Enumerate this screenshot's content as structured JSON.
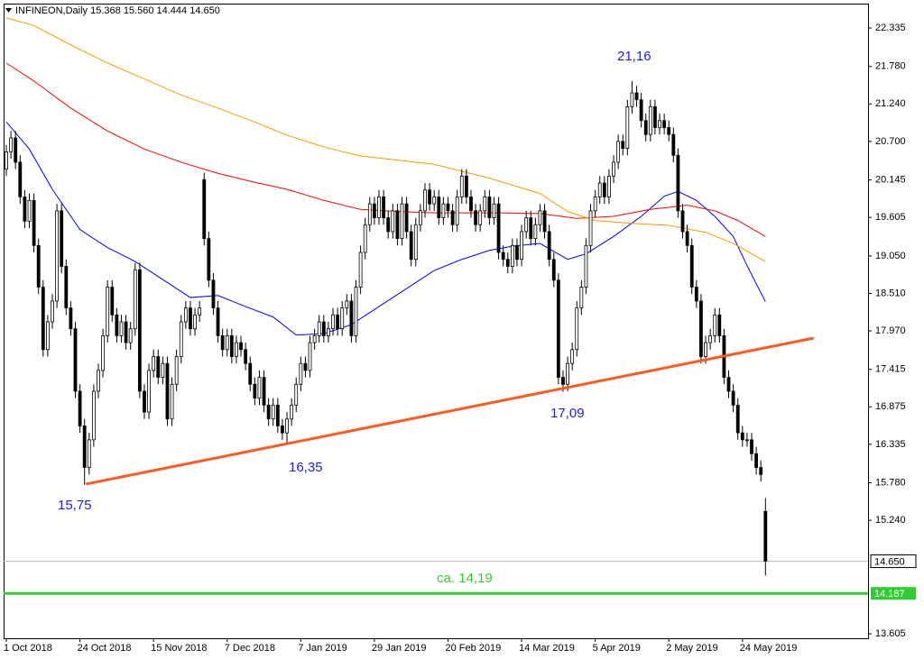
{
  "chart_data": {
    "type": "candlestick",
    "title": "INFINEON,Daily  15.368 15.560 14.444 14.650",
    "xlim": [
      -0.59,
      187.3
    ],
    "ylim": [
      13.54,
      22.686
    ],
    "xticks": [
      {
        "value": 0,
        "label": "1 Oct 2018"
      },
      {
        "value": 16,
        "label": "24 Oct 2018"
      },
      {
        "value": 32,
        "label": "15 Nov 2018"
      },
      {
        "value": 48,
        "label": "7 Dec 2018"
      },
      {
        "value": 64,
        "label": "7 Jan 2019"
      },
      {
        "value": 80,
        "label": "29 Jan 2019"
      },
      {
        "value": 96,
        "label": "20 Feb 2019"
      },
      {
        "value": 112,
        "label": "14 Mar 2019"
      },
      {
        "value": 128,
        "label": "5 Apr 2019"
      },
      {
        "value": 144,
        "label": "2 May 2019"
      },
      {
        "value": 160,
        "label": "24 May 2019"
      }
    ],
    "yticks": [
      22.335,
      {
        "value": 21.78,
        "label": "21.780"
      },
      {
        "value": 21.24,
        "label": "21.240"
      },
      {
        "value": 20.7,
        "label": "20.700"
      },
      20.145,
      19.605,
      {
        "value": 19.05,
        "label": "19.050"
      },
      {
        "value": 18.51,
        "label": "18.510"
      },
      {
        "value": 17.97,
        "label": "17.970"
      },
      17.415,
      16.875,
      16.335,
      {
        "value": 15.78,
        "label": "15.780"
      },
      {
        "value": 15.24,
        "label": "15.240"
      },
      13.605
    ],
    "open": [
      20.3,
      20.55,
      20.75,
      20.4,
      19.9,
      19.55,
      19.85,
      19.2,
      18.6,
      17.7,
      18.1,
      18.4,
      19.7,
      18.9,
      18.3,
      18.0,
      17.1,
      16.6,
      16.0,
      16.4,
      17.1,
      17.4,
      17.9,
      18.6,
      18.2,
      17.9,
      18.1,
      17.8,
      18.0,
      18.85,
      17.1,
      16.8,
      17.4,
      17.6,
      17.3,
      17.5,
      16.7,
      17.2,
      17.6,
      18.1,
      18.3,
      18.0,
      18.2,
      20.15,
      19.3,
      18.7,
      18.3,
      17.9,
      17.7,
      17.9,
      17.6,
      17.8,
      17.7,
      17.5,
      17.2,
      17.0,
      17.3,
      16.9,
      16.7,
      16.9,
      16.6,
      16.5,
      16.7,
      16.9,
      17.2,
      17.5,
      17.4,
      17.8,
      17.9,
      18.1,
      17.9,
      18.0,
      18.2,
      18.0,
      18.3,
      18.4,
      17.9,
      18.6,
      19.1,
      19.5,
      19.8,
      19.6,
      19.9,
      19.6,
      19.4,
      19.7,
      19.3,
      19.8,
      19.4,
      19.0,
      19.5,
      19.7,
      20.0,
      19.8,
      19.9,
      19.6,
      19.8,
      19.7,
      19.5,
      19.9,
      20.2,
      19.9,
      19.7,
      19.5,
      19.7,
      19.9,
      19.6,
      19.8,
      19.1,
      19.0,
      18.9,
      19.2,
      19.0,
      19.4,
      19.6,
      19.3,
      19.5,
      19.7,
      19.4,
      19.0,
      18.7,
      17.3,
      17.2,
      17.5,
      17.7,
      18.3,
      18.6,
      19.2,
      19.7,
      19.9,
      20.1,
      19.9,
      20.2,
      20.4,
      20.7,
      20.6,
      21.2,
      21.4,
      21.3,
      21.0,
      20.8,
      21.2,
      20.9,
      21.0,
      20.9,
      20.8,
      20.5,
      19.7,
      19.4,
      19.2,
      18.6,
      18.4,
      17.6,
      17.8,
      17.9,
      18.2,
      17.9,
      17.3,
      17.1,
      16.9,
      16.5,
      16.4,
      16.4,
      16.2,
      16.0,
      15.368
    ],
    "high": [
      20.65,
      20.85,
      20.85,
      20.5,
      20.0,
      19.95,
      19.95,
      19.3,
      18.7,
      18.2,
      18.5,
      19.8,
      19.8,
      19.0,
      18.4,
      18.1,
      17.2,
      16.7,
      16.5,
      17.2,
      17.5,
      18.0,
      18.7,
      18.7,
      18.3,
      18.2,
      18.2,
      18.1,
      18.95,
      18.95,
      17.2,
      17.5,
      17.7,
      17.7,
      17.6,
      17.6,
      17.3,
      17.7,
      18.2,
      18.4,
      18.4,
      18.3,
      18.4,
      20.25,
      19.4,
      18.8,
      18.4,
      18.0,
      18.0,
      18.0,
      17.9,
      17.9,
      17.8,
      17.6,
      17.3,
      17.4,
      17.4,
      17.0,
      17.0,
      17.0,
      16.7,
      16.8,
      17.0,
      17.3,
      17.6,
      17.6,
      17.9,
      18.0,
      18.2,
      18.2,
      18.1,
      18.3,
      18.3,
      18.4,
      18.5,
      18.5,
      18.7,
      19.2,
      19.6,
      19.9,
      19.9,
      20.0,
      20.0,
      19.7,
      19.8,
      19.8,
      19.9,
      19.9,
      19.5,
      19.6,
      19.8,
      20.1,
      20.1,
      20.0,
      20.0,
      19.9,
      19.9,
      19.8,
      20.0,
      20.3,
      20.3,
      20.0,
      19.8,
      19.8,
      20.0,
      20.0,
      19.9,
      19.9,
      19.2,
      19.1,
      19.3,
      19.3,
      19.5,
      19.7,
      19.7,
      19.6,
      19.8,
      19.8,
      19.5,
      19.1,
      18.8,
      17.4,
      17.6,
      17.8,
      18.4,
      18.7,
      19.3,
      19.8,
      20.0,
      20.2,
      20.2,
      20.3,
      20.5,
      20.8,
      20.8,
      21.3,
      21.57,
      21.5,
      21.4,
      21.1,
      21.3,
      21.3,
      21.1,
      21.1,
      21.0,
      20.9,
      20.6,
      19.8,
      19.5,
      19.3,
      18.7,
      18.5,
      17.9,
      18.0,
      18.3,
      18.3,
      18.0,
      17.4,
      17.2,
      17.0,
      16.6,
      16.5,
      16.5,
      16.3,
      16.1,
      15.56
    ],
    "low": [
      20.2,
      20.45,
      20.3,
      19.8,
      19.45,
      19.45,
      19.1,
      18.5,
      17.6,
      17.6,
      18.0,
      18.3,
      18.8,
      18.2,
      17.9,
      17.0,
      16.5,
      15.75,
      15.9,
      16.3,
      17.0,
      17.3,
      17.8,
      18.1,
      17.8,
      17.8,
      17.7,
      17.7,
      17.9,
      17.0,
      16.7,
      16.7,
      17.3,
      17.2,
      17.2,
      16.6,
      16.6,
      17.1,
      17.5,
      18.0,
      17.9,
      17.9,
      18.1,
      19.2,
      18.6,
      18.2,
      17.8,
      17.6,
      17.6,
      17.5,
      17.5,
      17.6,
      17.4,
      17.1,
      16.9,
      16.9,
      16.8,
      16.6,
      16.6,
      16.5,
      16.4,
      16.35,
      16.6,
      16.8,
      17.1,
      17.3,
      17.3,
      17.7,
      17.8,
      17.8,
      17.8,
      17.9,
      17.9,
      17.9,
      18.2,
      17.8,
      17.8,
      18.5,
      19.0,
      19.4,
      19.5,
      19.5,
      19.5,
      19.3,
      19.3,
      19.2,
      19.2,
      19.3,
      18.9,
      18.9,
      19.4,
      19.6,
      19.7,
      19.7,
      19.5,
      19.5,
      19.6,
      19.4,
      19.4,
      19.8,
      19.8,
      19.6,
      19.4,
      19.4,
      19.6,
      19.5,
      19.5,
      19.0,
      18.9,
      18.8,
      18.8,
      18.9,
      18.9,
      19.3,
      19.2,
      19.2,
      19.4,
      19.3,
      18.9,
      18.6,
      17.2,
      17.09,
      17.1,
      17.4,
      17.6,
      18.2,
      18.5,
      19.1,
      19.6,
      19.8,
      19.8,
      19.8,
      20.1,
      20.3,
      20.5,
      20.5,
      21.1,
      21.2,
      20.9,
      20.7,
      20.7,
      20.8,
      20.8,
      20.8,
      20.7,
      20.4,
      19.6,
      19.3,
      19.1,
      18.5,
      18.3,
      17.5,
      17.5,
      17.7,
      17.8,
      17.8,
      17.2,
      17.0,
      16.8,
      16.4,
      16.3,
      16.3,
      16.1,
      15.9,
      15.8,
      14.444
    ],
    "close": [
      20.55,
      20.75,
      20.4,
      19.9,
      19.55,
      19.85,
      19.2,
      18.6,
      17.7,
      18.1,
      18.4,
      19.7,
      18.9,
      18.3,
      18.0,
      17.1,
      16.6,
      16.0,
      16.4,
      17.1,
      17.4,
      17.9,
      18.6,
      18.2,
      17.9,
      18.1,
      17.8,
      18.0,
      18.85,
      17.1,
      16.8,
      17.4,
      17.6,
      17.3,
      17.5,
      16.7,
      17.2,
      17.6,
      18.1,
      18.3,
      18.0,
      18.2,
      18.3,
      19.3,
      18.7,
      18.3,
      17.9,
      17.7,
      17.9,
      17.6,
      17.8,
      17.7,
      17.5,
      17.2,
      17.0,
      17.3,
      16.9,
      16.7,
      16.9,
      16.6,
      16.5,
      16.7,
      16.9,
      17.2,
      17.5,
      17.4,
      17.8,
      17.9,
      18.1,
      17.9,
      18.0,
      18.2,
      18.0,
      18.3,
      18.4,
      17.9,
      18.6,
      19.1,
      19.5,
      19.8,
      19.6,
      19.9,
      19.6,
      19.4,
      19.7,
      19.3,
      19.8,
      19.4,
      19.0,
      19.5,
      19.7,
      20.0,
      19.8,
      19.9,
      19.6,
      19.8,
      19.7,
      19.5,
      19.9,
      20.2,
      19.9,
      19.7,
      19.5,
      19.7,
      19.9,
      19.6,
      19.8,
      19.1,
      19.0,
      18.9,
      19.2,
      19.0,
      19.4,
      19.6,
      19.3,
      19.5,
      19.7,
      19.4,
      19.0,
      18.7,
      17.3,
      17.2,
      17.5,
      17.7,
      18.3,
      18.6,
      19.2,
      19.7,
      19.9,
      20.1,
      19.9,
      20.2,
      20.4,
      20.7,
      20.6,
      21.2,
      21.4,
      21.3,
      21.0,
      20.8,
      21.2,
      20.9,
      21.0,
      20.9,
      20.8,
      20.5,
      19.7,
      19.4,
      19.2,
      18.6,
      18.4,
      17.6,
      17.8,
      17.9,
      18.2,
      17.9,
      17.3,
      17.1,
      16.9,
      16.5,
      16.4,
      16.4,
      16.2,
      16.0,
      15.9,
      14.65
    ],
    "moving_averages": [
      {
        "color": "#0000ff",
        "x": [
          0,
          5,
          10,
          16,
          22,
          28,
          34,
          40,
          46,
          52,
          58,
          63,
          69,
          75,
          81,
          87,
          93,
          99,
          105,
          110,
          116,
          122,
          126,
          132,
          138,
          143,
          146,
          150,
          154,
          158,
          161,
          165
        ],
        "values": [
          20.98,
          20.59,
          20.01,
          19.43,
          19.17,
          18.97,
          18.71,
          18.45,
          18.48,
          18.32,
          18.17,
          17.91,
          17.93,
          18.06,
          18.32,
          18.58,
          18.84,
          19.0,
          19.13,
          19.19,
          19.23,
          19.0,
          19.08,
          19.33,
          19.62,
          19.91,
          19.98,
          19.85,
          19.62,
          19.33,
          18.91,
          18.39
        ]
      },
      {
        "color": "#ff0000",
        "x": [
          0,
          6,
          14,
          22,
          30,
          38,
          46,
          54,
          61,
          69,
          77,
          85,
          93,
          101,
          108,
          116,
          124,
          132,
          140,
          148,
          154,
          159,
          165
        ],
        "values": [
          21.83,
          21.57,
          21.18,
          20.85,
          20.59,
          20.4,
          20.24,
          20.11,
          20.01,
          19.85,
          19.72,
          19.69,
          19.67,
          19.67,
          19.67,
          19.66,
          19.59,
          19.62,
          19.72,
          19.78,
          19.7,
          19.56,
          19.33
        ]
      },
      {
        "color": "#ff9900",
        "x": [
          0,
          6,
          14,
          22,
          30,
          38,
          46,
          54,
          61,
          69,
          77,
          85,
          93,
          99,
          105,
          110,
          116,
          122,
          128,
          136,
          144,
          152,
          158,
          165
        ],
        "values": [
          22.48,
          22.37,
          22.09,
          21.83,
          21.6,
          21.37,
          21.18,
          20.98,
          20.79,
          20.62,
          20.49,
          20.43,
          20.37,
          20.27,
          20.17,
          20.07,
          19.95,
          19.69,
          19.56,
          19.52,
          19.49,
          19.39,
          19.23,
          18.97
        ]
      }
    ],
    "trendline": {
      "color": "#ff5a1f",
      "x": [
        17.3,
        175.5
      ],
      "y": [
        15.762,
        17.866
      ]
    },
    "price_line": {
      "value": 14.65,
      "label": "14.650",
      "color": "#c0c0c0"
    },
    "level_line": {
      "value": 14.187,
      "label": "14.187",
      "color": "#33cc33"
    },
    "annotations": [
      "15,75",
      "16,35",
      "17,09",
      "21,16",
      "ca. 14,19"
    ]
  }
}
